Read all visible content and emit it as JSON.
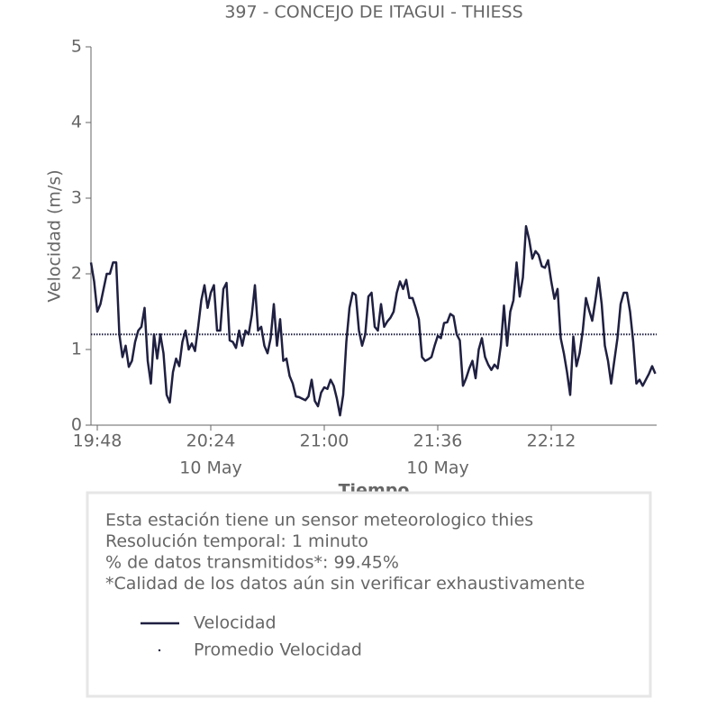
{
  "chart_data": {
    "type": "line",
    "title": "397 - CONCEJO DE ITAGUI - THIESS",
    "ylabel": "Velocidad (m/s)",
    "xlabel": "Tiempo",
    "ylim": [
      0,
      5
    ],
    "yticks": [
      0,
      1,
      2,
      3,
      4,
      5
    ],
    "xlim": [
      "19:46",
      "22:46"
    ],
    "xticks": [
      "19:48",
      "20:24",
      "21:00",
      "21:36",
      "22:12"
    ],
    "date_labels": [
      {
        "value": "20:24",
        "label": "10 May"
      },
      {
        "value": "21:36",
        "label": "10 May"
      }
    ],
    "x": [
      "19:46",
      "19:47",
      "19:48",
      "19:49",
      "19:50",
      "19:51",
      "19:52",
      "19:53",
      "19:54",
      "19:55",
      "19:56",
      "19:57",
      "19:58",
      "19:59",
      "20:00",
      "20:01",
      "20:02",
      "20:03",
      "20:04",
      "20:05",
      "20:06",
      "20:07",
      "20:08",
      "20:09",
      "20:10",
      "20:11",
      "20:12",
      "20:13",
      "20:14",
      "20:15",
      "20:16",
      "20:17",
      "20:18",
      "20:19",
      "20:20",
      "20:21",
      "20:22",
      "20:23",
      "20:24",
      "20:25",
      "20:26",
      "20:27",
      "20:28",
      "20:29",
      "20:30",
      "20:31",
      "20:32",
      "20:33",
      "20:34",
      "20:35",
      "20:36",
      "20:37",
      "20:38",
      "20:39",
      "20:40",
      "20:41",
      "20:42",
      "20:43",
      "20:44",
      "20:45",
      "20:46",
      "20:47",
      "20:48",
      "20:49",
      "20:50",
      "20:51",
      "20:52",
      "20:53",
      "20:54",
      "20:55",
      "20:56",
      "20:57",
      "20:58",
      "20:59",
      "21:00",
      "21:01",
      "21:02",
      "21:03",
      "21:04",
      "21:05",
      "21:06",
      "21:07",
      "21:08",
      "21:09",
      "21:10",
      "21:11",
      "21:12",
      "21:13",
      "21:14",
      "21:15",
      "21:16",
      "21:17",
      "21:18",
      "21:19",
      "21:20",
      "21:21",
      "21:22",
      "21:23",
      "21:24",
      "21:25",
      "21:26",
      "21:27",
      "21:28",
      "21:29",
      "21:30",
      "21:31",
      "21:32",
      "21:33",
      "21:34",
      "21:35",
      "21:36",
      "21:37",
      "21:38",
      "21:39",
      "21:40",
      "21:41",
      "21:42",
      "21:43",
      "21:44",
      "21:45",
      "21:46",
      "21:47",
      "21:48",
      "21:49",
      "21:50",
      "21:51",
      "21:52",
      "21:53",
      "21:54",
      "21:55",
      "21:56",
      "21:57",
      "21:58",
      "21:59",
      "22:00",
      "22:01",
      "22:02",
      "22:03",
      "22:04",
      "22:05",
      "22:06",
      "22:07",
      "22:08",
      "22:09",
      "22:10",
      "22:11",
      "22:12",
      "22:13",
      "22:14",
      "22:15",
      "22:16",
      "22:17",
      "22:18",
      "22:19",
      "22:20",
      "22:21",
      "22:22",
      "22:23",
      "22:24",
      "22:25",
      "22:26",
      "22:27",
      "22:28",
      "22:29",
      "22:30",
      "22:31",
      "22:32",
      "22:33",
      "22:34",
      "22:35",
      "22:36",
      "22:37",
      "22:38",
      "22:39",
      "22:40",
      "22:41",
      "22:42",
      "22:43",
      "22:44",
      "22:45"
    ],
    "series": [
      {
        "name": "Velocidad",
        "color": "#1f2041",
        "values": [
          2.15,
          1.9,
          1.5,
          1.6,
          1.8,
          2.0,
          2.0,
          2.15,
          2.15,
          1.2,
          0.9,
          1.05,
          0.77,
          0.85,
          1.1,
          1.25,
          1.3,
          1.55,
          0.85,
          0.55,
          1.2,
          0.88,
          1.2,
          0.95,
          0.4,
          0.3,
          0.7,
          0.88,
          0.78,
          1.1,
          1.25,
          1.0,
          1.08,
          0.98,
          1.3,
          1.65,
          1.85,
          1.55,
          1.75,
          1.85,
          1.25,
          1.25,
          1.8,
          1.88,
          1.12,
          1.1,
          1.02,
          1.25,
          1.05,
          1.25,
          1.2,
          1.45,
          1.85,
          1.25,
          1.3,
          1.05,
          0.95,
          1.15,
          1.6,
          1.05,
          1.4,
          0.85,
          0.88,
          0.65,
          0.55,
          0.38,
          0.37,
          0.35,
          0.33,
          0.38,
          0.6,
          0.32,
          0.25,
          0.43,
          0.5,
          0.48,
          0.6,
          0.52,
          0.35,
          0.13,
          0.4,
          1.1,
          1.55,
          1.75,
          1.72,
          1.25,
          1.05,
          1.2,
          1.7,
          1.75,
          1.3,
          1.25,
          1.6,
          1.3,
          1.37,
          1.42,
          1.5,
          1.75,
          1.9,
          1.8,
          1.92,
          1.68,
          1.68,
          1.55,
          1.4,
          0.9,
          0.85,
          0.87,
          0.9,
          1.05,
          1.18,
          1.15,
          1.35,
          1.36,
          1.47,
          1.44,
          1.2,
          1.12,
          0.52,
          0.62,
          0.75,
          0.85,
          0.62,
          1.0,
          1.15,
          0.9,
          0.8,
          0.73,
          0.8,
          0.75,
          1.05,
          1.58,
          1.05,
          1.5,
          1.65,
          2.15,
          1.7,
          1.95,
          2.63,
          2.45,
          2.2,
          2.3,
          2.25,
          2.1,
          2.08,
          2.18,
          1.9,
          1.67,
          1.8,
          1.15,
          0.95,
          0.7,
          0.4,
          1.17,
          0.78,
          0.95,
          1.25,
          1.68,
          1.52,
          1.38,
          1.65,
          1.95,
          1.6,
          1.05,
          0.85,
          0.55,
          0.85,
          1.15,
          1.6,
          1.75,
          1.75,
          1.5,
          1.1,
          0.55,
          0.6,
          0.52,
          0.6,
          0.68,
          0.78,
          0.68
        ]
      }
    ],
    "mean_line": {
      "name": "Promedio Velocidad",
      "value": 1.2,
      "color": "#1f2041",
      "style": "dotted"
    },
    "info_lines": [
      "Esta estación tiene un sensor meteorologico thies",
      "Resolución temporal: 1 minuto",
      "% de datos transmitidos*: 99.45%",
      "*Calidad de los datos aún sin verificar exhaustivamente"
    ]
  }
}
